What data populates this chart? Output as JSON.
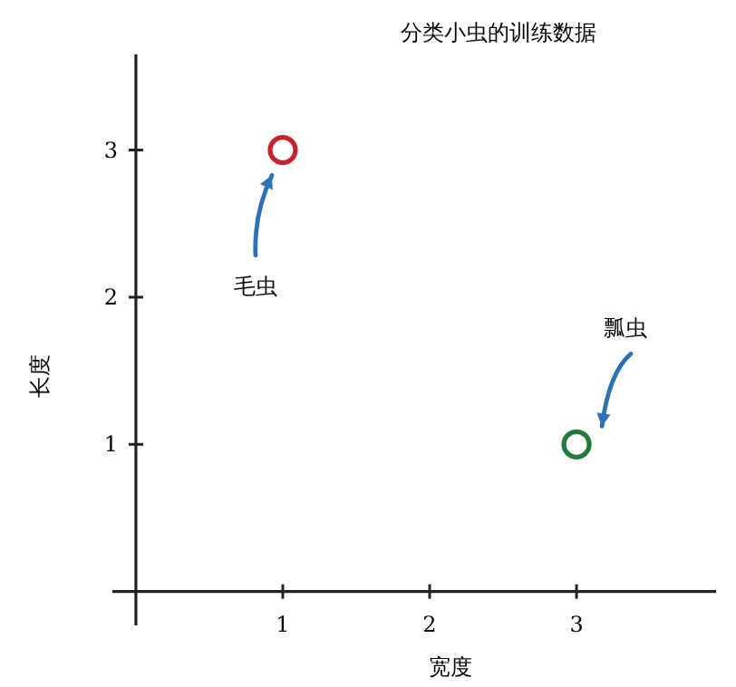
{
  "chart_data": {
    "type": "scatter",
    "title": "分类小虫的训练数据",
    "xlabel": "宽度",
    "ylabel": "长度",
    "xlim": [
      -0.16,
      3.95
    ],
    "ylim": [
      -0.23,
      3.65
    ],
    "xticks": [
      1,
      2,
      3
    ],
    "yticks": [
      1,
      2,
      3
    ],
    "marker": "circle",
    "series": [
      {
        "name": "毛虫",
        "color": "#c8232c",
        "x": [
          1
        ],
        "values": [
          3
        ]
      },
      {
        "name": "瓢虫",
        "color": "#1f7a3c",
        "x": [
          3
        ],
        "values": [
          1
        ]
      }
    ]
  }
}
